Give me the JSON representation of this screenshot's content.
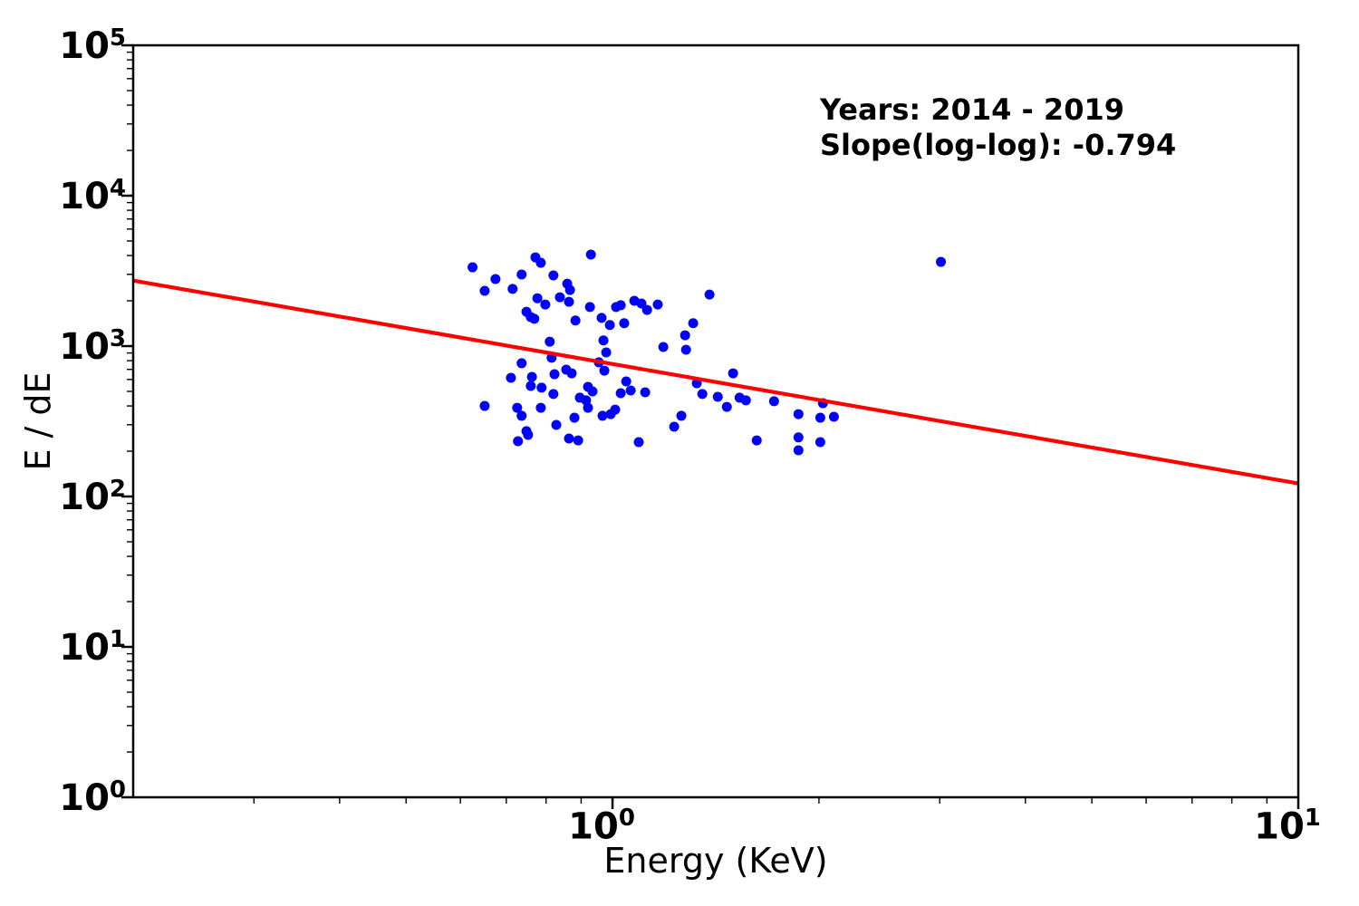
{
  "figure": {
    "background": "#ffffff"
  },
  "chart_data": {
    "type": "scatter",
    "title": "",
    "xlabel": "Energy (KeV)",
    "ylabel": "E / dE",
    "x_scale": "log",
    "y_scale": "log",
    "xlim": [
      0.2,
      10
    ],
    "ylim": [
      1,
      100000
    ],
    "grid": false,
    "legend": "none",
    "x_tick_labels": [
      "10^0",
      "10^1"
    ],
    "y_tick_labels": [
      "10^0",
      "10^1",
      "10^2",
      "10^3",
      "10^4",
      "10^5"
    ],
    "marker_color": "#0000ff",
    "line_color": "#ff0000",
    "annotation_lines": [
      "Years: 2014 - 2019",
      "Slope(log-log): -0.794"
    ],
    "trendline": {
      "slope": -0.794,
      "amplitude": 760,
      "x_range": [
        0.2,
        10
      ]
    },
    "points": [
      [
        0.625,
        3340
      ],
      [
        0.675,
        2790
      ],
      [
        0.651,
        2330
      ],
      [
        0.715,
        2400
      ],
      [
        0.737,
        2990
      ],
      [
        0.772,
        3890
      ],
      [
        0.786,
        3580
      ],
      [
        0.82,
        2950
      ],
      [
        0.777,
        2080
      ],
      [
        0.798,
        1890
      ],
      [
        0.838,
        2110
      ],
      [
        0.859,
        2600
      ],
      [
        0.867,
        2360
      ],
      [
        0.864,
        1970
      ],
      [
        0.749,
        1690
      ],
      [
        0.76,
        1560
      ],
      [
        0.769,
        1520
      ],
      [
        0.883,
        1480
      ],
      [
        0.93,
        4060
      ],
      [
        0.927,
        1820
      ],
      [
        0.964,
        1540
      ],
      [
        0.991,
        1380
      ],
      [
        1.012,
        1820
      ],
      [
        1.028,
        1870
      ],
      [
        1.04,
        1420
      ],
      [
        1.076,
        2000
      ],
      [
        1.102,
        1920
      ],
      [
        1.123,
        1740
      ],
      [
        0.81,
        1070
      ],
      [
        0.97,
        1090
      ],
      [
        0.979,
        908
      ],
      [
        1.164,
        1890
      ],
      [
        1.385,
        2200
      ],
      [
        1.311,
        1420
      ],
      [
        1.276,
        1180
      ],
      [
        1.186,
        986
      ],
      [
        1.28,
        946
      ],
      [
        0.737,
        769
      ],
      [
        0.815,
        836
      ],
      [
        0.955,
        780
      ],
      [
        0.973,
        687
      ],
      [
        0.856,
        697
      ],
      [
        0.872,
        659
      ],
      [
        0.823,
        650
      ],
      [
        0.711,
        615
      ],
      [
        0.763,
        624
      ],
      [
        0.76,
        543
      ],
      [
        0.788,
        529
      ],
      [
        0.82,
        480
      ],
      [
        0.921,
        536
      ],
      [
        0.935,
        500
      ],
      [
        0.896,
        454
      ],
      [
        0.915,
        436
      ],
      [
        0.921,
        389
      ],
      [
        0.651,
        400
      ],
      [
        0.726,
        389
      ],
      [
        0.737,
        344
      ],
      [
        0.786,
        389
      ],
      [
        0.88,
        334
      ],
      [
        0.828,
        299
      ],
      [
        0.749,
        272
      ],
      [
        0.753,
        257
      ],
      [
        0.728,
        233
      ],
      [
        0.864,
        243
      ],
      [
        0.891,
        236
      ],
      [
        1.092,
        230
      ],
      [
        1.028,
        486
      ],
      [
        1.063,
        507
      ],
      [
        1.116,
        493
      ],
      [
        1.047,
        582
      ],
      [
        0.994,
        353
      ],
      [
        0.967,
        344
      ],
      [
        1.009,
        378
      ],
      [
        1.499,
        659
      ],
      [
        1.327,
        566
      ],
      [
        1.352,
        480
      ],
      [
        1.424,
        460
      ],
      [
        1.468,
        394
      ],
      [
        1.532,
        454
      ],
      [
        1.565,
        436
      ],
      [
        1.72,
        430
      ],
      [
        2.027,
        417
      ],
      [
        1.26,
        344
      ],
      [
        1.23,
        291
      ],
      [
        1.867,
        353
      ],
      [
        2.009,
        334
      ],
      [
        2.103,
        339
      ],
      [
        1.623,
        236
      ],
      [
        1.867,
        247
      ],
      [
        2.009,
        230
      ],
      [
        1.867,
        203
      ],
      [
        3.012,
        3630
      ]
    ]
  }
}
